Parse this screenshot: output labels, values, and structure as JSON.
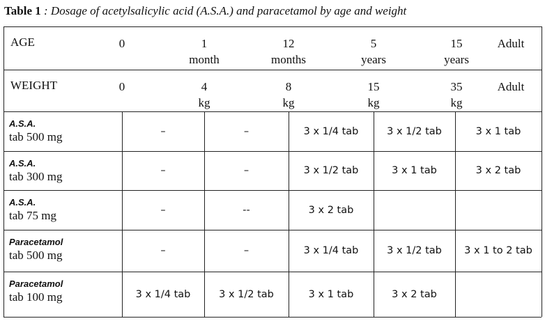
{
  "caption": {
    "label": "Table 1",
    "text": ": Dosage of acetylsalicylic acid (A.S.A.) and paracetamol by age and weight"
  },
  "table": {
    "age": {
      "label": "AGE",
      "values": [
        "0",
        {
          "value": "1",
          "unit": "month"
        },
        {
          "value": "12",
          "unit": "months"
        },
        {
          "value": "5",
          "unit": "years"
        },
        {
          "value": "15",
          "unit": "years"
        },
        "Adult"
      ]
    },
    "weight": {
      "label": "WEIGHT",
      "values": [
        "0",
        {
          "value": "4",
          "unit": "kg"
        },
        {
          "value": "8",
          "unit": "kg"
        },
        {
          "value": "15",
          "unit": "kg"
        },
        {
          "value": "35",
          "unit": "kg"
        },
        "Adult"
      ]
    },
    "rows": [
      {
        "drug": "A.S.A.",
        "form": "tab 500 mg",
        "cells": [
          "–",
          "–",
          "3 x 1/4 tab",
          "3 x 1/2 tab",
          "3 x 1 tab"
        ]
      },
      {
        "drug": "A.S.A.",
        "form": "tab 300 mg",
        "cells": [
          "–",
          "–",
          "3 x 1/2 tab",
          "3 x 1 tab",
          "3 x 2 tab"
        ]
      },
      {
        "drug": "A.S.A.",
        "form": "tab 75 mg",
        "cells": [
          "–",
          "--",
          "3 x 2 tab",
          null,
          null
        ]
      },
      {
        "drug": "Paracetamol",
        "form": "tab 500 mg",
        "cells": [
          "–",
          "–",
          "3 x 1/4 tab",
          "3 x 1/2 tab",
          "3 x 1 to 2 tab"
        ]
      },
      {
        "drug": "Paracetamol",
        "form": "tab 100 mg",
        "cells": [
          "3 x 1/4 tab",
          "3 x 1/2 tab",
          "3 x 1 tab",
          "3 x 2 tab",
          null
        ]
      }
    ]
  }
}
